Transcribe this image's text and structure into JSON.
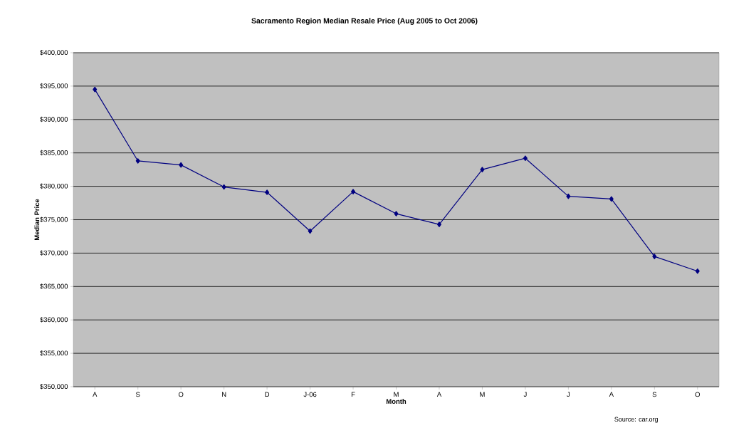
{
  "chart_data": {
    "type": "line",
    "title": "Sacramento Region Median Resale Price (Aug 2005 to Oct 2006)",
    "xlabel": "Month",
    "ylabel": "Median Price",
    "categories": [
      "A",
      "S",
      "O",
      "N",
      "D",
      "J-06",
      "F",
      "M",
      "A",
      "M",
      "J",
      "J",
      "A",
      "S",
      "O"
    ],
    "series": [
      {
        "color": "#000080",
        "values": [
          394500,
          383800,
          383200,
          379900,
          379100,
          373300,
          379200,
          375900,
          374300,
          382500,
          384200,
          378500,
          378100,
          369500,
          367300
        ]
      }
    ],
    "ylim": [
      350000,
      400000
    ],
    "yticks": [
      {
        "value": 350000,
        "label": "$350,000"
      },
      {
        "value": 355000,
        "label": "$355,000"
      },
      {
        "value": 360000,
        "label": "$360,000"
      },
      {
        "value": 365000,
        "label": "$365,000"
      },
      {
        "value": 370000,
        "label": "$370,000"
      },
      {
        "value": 375000,
        "label": "$375,000"
      },
      {
        "value": 380000,
        "label": "$380,000"
      },
      {
        "value": 385000,
        "label": "$385,000"
      },
      {
        "value": 390000,
        "label": "$390,000"
      },
      {
        "value": 395000,
        "label": "$395,000"
      },
      {
        "value": 400000,
        "label": "$400,000"
      }
    ],
    "grid": "y",
    "marker": "diamond",
    "line_style": "solid",
    "annotations": [
      "Source: car.org"
    ]
  }
}
